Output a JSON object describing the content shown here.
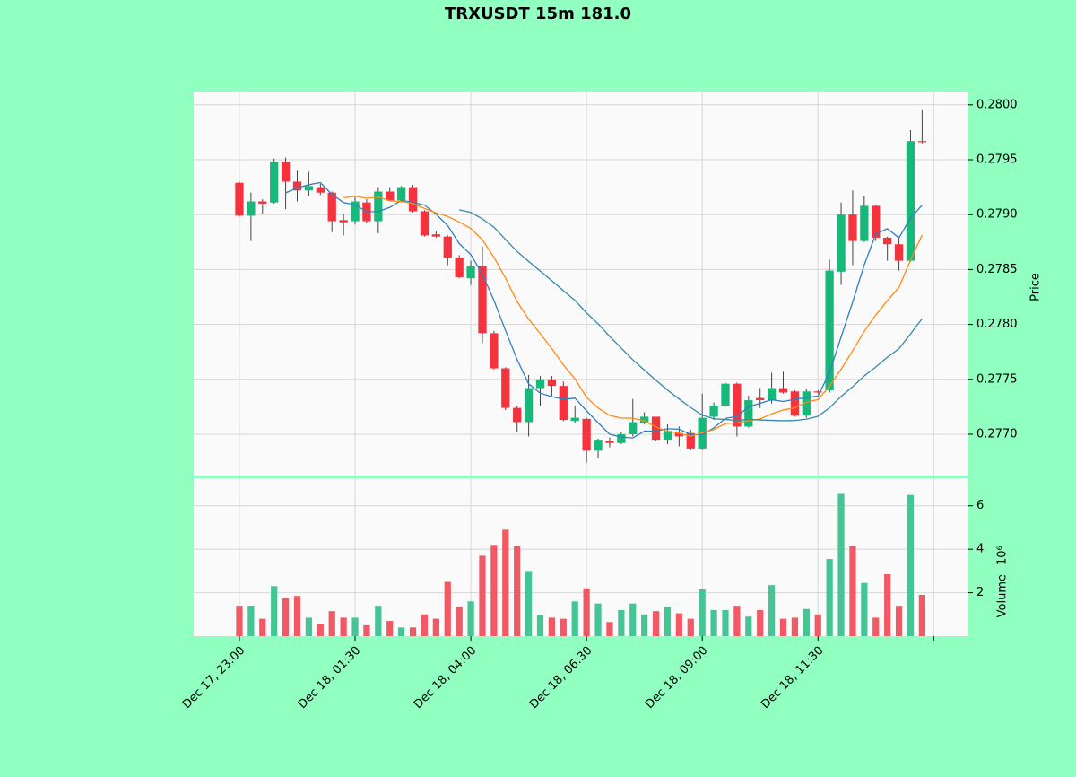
{
  "chart_data": {
    "type": "candlestick",
    "title": "TRXUSDT 15m 181.0",
    "ylabel": "Price",
    "volume_label": "Volume",
    "volume_scale_label": "10⁶",
    "up_color": "#16b97a",
    "down_color": "#f5333f",
    "volume_up_color": "#45c596",
    "volume_down_color": "#f25964",
    "wick_color": "#444444",
    "grid": true,
    "open": [
      0.27929,
      0.27899,
      0.27912,
      0.27911,
      0.27948,
      0.2793,
      0.27922,
      0.27925,
      0.2792,
      0.27895,
      0.27894,
      0.27911,
      0.27894,
      0.27921,
      0.27913,
      0.27925,
      0.27903,
      0.27882,
      0.2788,
      0.27861,
      0.27842,
      0.27853,
      0.27792,
      0.2776,
      0.27724,
      0.27711,
      0.27742,
      0.2775,
      0.27744,
      0.27712,
      0.27714,
      0.27685,
      0.27694,
      0.27692,
      0.277,
      0.2771,
      0.27716,
      0.27695,
      0.27701,
      0.27701,
      0.27687,
      0.27716,
      0.27726,
      0.27746,
      0.27707,
      0.27733,
      0.27731,
      0.27742,
      0.27739,
      0.27717,
      0.27739,
      0.2774,
      0.27848,
      0.279,
      0.27876,
      0.27908,
      0.27879,
      0.27873,
      0.27858,
      0.27967
    ],
    "high": [
      0.2793,
      0.2792,
      0.27914,
      0.27951,
      0.27952,
      0.2794,
      0.27939,
      0.27928,
      0.27921,
      0.27901,
      0.27916,
      0.27914,
      0.27925,
      0.27925,
      0.27926,
      0.27927,
      0.27904,
      0.27885,
      0.27881,
      0.27863,
      0.27858,
      0.27871,
      0.27794,
      0.27761,
      0.27726,
      0.27754,
      0.27753,
      0.27753,
      0.27748,
      0.27726,
      0.27715,
      0.27696,
      0.27697,
      0.27702,
      0.27732,
      0.2772,
      0.27716,
      0.27709,
      0.27707,
      0.27704,
      0.27737,
      0.27729,
      0.27747,
      0.27747,
      0.27735,
      0.27742,
      0.27756,
      0.27757,
      0.2774,
      0.27741,
      0.2774,
      0.27859,
      0.27911,
      0.27922,
      0.27917,
      0.27909,
      0.2788,
      0.2788,
      0.27977,
      0.27995
    ],
    "low": [
      0.27898,
      0.27876,
      0.27901,
      0.2791,
      0.27905,
      0.27912,
      0.27917,
      0.27918,
      0.27884,
      0.27881,
      0.27891,
      0.27892,
      0.27883,
      0.27912,
      0.27911,
      0.27902,
      0.2788,
      0.27879,
      0.27854,
      0.27842,
      0.27836,
      0.27783,
      0.27759,
      0.27722,
      0.27702,
      0.27698,
      0.27726,
      0.27735,
      0.27712,
      0.2771,
      0.27674,
      0.27678,
      0.27688,
      0.27691,
      0.27698,
      0.27709,
      0.27694,
      0.27691,
      0.27689,
      0.27686,
      0.27686,
      0.27713,
      0.27725,
      0.27698,
      0.27706,
      0.27724,
      0.27728,
      0.27737,
      0.27716,
      0.27715,
      0.27737,
      0.27738,
      0.27836,
      0.27854,
      0.27875,
      0.27876,
      0.27858,
      0.27849,
      0.27857,
      0.27965
    ],
    "close": [
      0.27899,
      0.27912,
      0.2791,
      0.27948,
      0.2793,
      0.27922,
      0.27926,
      0.2792,
      0.27894,
      0.27893,
      0.27912,
      0.27894,
      0.27921,
      0.27913,
      0.27925,
      0.27903,
      0.27881,
      0.2788,
      0.27861,
      0.27843,
      0.27853,
      0.27792,
      0.2776,
      0.27724,
      0.27711,
      0.27742,
      0.2775,
      0.27744,
      0.27713,
      0.27715,
      0.27685,
      0.27695,
      0.27692,
      0.277,
      0.27711,
      0.27716,
      0.27695,
      0.27703,
      0.27698,
      0.27687,
      0.27715,
      0.27726,
      0.27746,
      0.27707,
      0.27731,
      0.27731,
      0.27742,
      0.27738,
      0.27717,
      0.27739,
      0.27738,
      0.27849,
      0.279,
      0.27876,
      0.27908,
      0.27879,
      0.27873,
      0.27858,
      0.27967,
      0.27966
    ],
    "volume": [
      1.4,
      1.4,
      0.8,
      2.3,
      1.75,
      1.85,
      0.85,
      0.55,
      1.15,
      0.85,
      0.85,
      0.5,
      1.4,
      0.7,
      0.4,
      0.4,
      1.0,
      0.8,
      2.5,
      1.35,
      1.6,
      3.7,
      4.2,
      4.9,
      4.15,
      3.0,
      0.95,
      0.85,
      0.8,
      1.6,
      2.2,
      1.5,
      0.65,
      1.2,
      1.5,
      1.0,
      1.15,
      1.35,
      1.05,
      0.8,
      2.15,
      1.2,
      1.2,
      1.4,
      0.9,
      1.2,
      2.35,
      0.8,
      0.85,
      1.25,
      1.0,
      3.55,
      6.55,
      4.15,
      2.45,
      0.85,
      2.85,
      1.4,
      6.5,
      1.9
    ],
    "moving_averages": [
      {
        "color": "#2f7fbf",
        "values": [
          null,
          null,
          null,
          null,
          0.279198,
          0.279244,
          0.279272,
          0.279292,
          0.279184,
          0.27911,
          0.27909,
          0.279026,
          0.279028,
          0.279066,
          0.27913,
          0.279112,
          0.279086,
          0.279004,
          0.2789,
          0.278736,
          0.278636,
          0.278458,
          0.278218,
          0.277944,
          0.27768,
          0.277458,
          0.277374,
          0.277342,
          0.27732,
          0.277328,
          0.277214,
          0.277104,
          0.277,
          0.276974,
          0.276966,
          0.277028,
          0.277028,
          0.27705,
          0.277046,
          0.276998,
          0.276996,
          0.277058,
          0.277144,
          0.277162,
          0.27725,
          0.277282,
          0.277314,
          0.277298,
          0.277318,
          0.277334,
          0.277348,
          0.277562,
          0.277886,
          0.278204,
          0.278542,
          0.278824,
          0.278872,
          0.278788,
          0.27897,
          0.279086
        ]
      },
      {
        "color": "#ff8a12",
        "values": [
          null,
          null,
          null,
          null,
          null,
          null,
          null,
          null,
          null,
          0.279154,
          0.279167,
          0.279149,
          0.27916,
          0.279125,
          0.27912,
          0.279101,
          0.279056,
          0.279016,
          0.278983,
          0.278933,
          0.278874,
          0.278772,
          0.278611,
          0.278422,
          0.278208,
          0.278047,
          0.277916,
          0.27778,
          0.277632,
          0.277504,
          0.277336,
          0.277239,
          0.277171,
          0.277147,
          0.277147,
          0.277121,
          0.277066,
          0.277025,
          0.27701,
          0.276982,
          0.277012,
          0.277043,
          0.277097,
          0.277104,
          0.277124,
          0.277139,
          0.277186,
          0.277221,
          0.27724,
          0.277292,
          0.277315,
          0.277438,
          0.277592,
          0.277761,
          0.277938,
          0.278086,
          0.278217,
          0.278337,
          0.278587,
          0.278814
        ]
      },
      {
        "color": "#3588aa",
        "values": [
          null,
          null,
          null,
          null,
          null,
          null,
          null,
          null,
          null,
          null,
          null,
          null,
          null,
          null,
          null,
          null,
          null,
          null,
          null,
          0.2790435,
          0.2790205,
          0.2789605,
          0.2788855,
          0.2787735,
          0.278664,
          0.278574,
          0.278486,
          0.278398,
          0.2783075,
          0.2782185,
          0.278105,
          0.2780055,
          0.277891,
          0.2777845,
          0.2776775,
          0.277584,
          0.277491,
          0.2774025,
          0.277321,
          0.277243,
          0.277174,
          0.277141,
          0.277134,
          0.2771255,
          0.2771355,
          0.27713,
          0.277126,
          0.277123,
          0.277125,
          0.277137,
          0.2771635,
          0.2772405,
          0.2773445,
          0.2774325,
          0.277531,
          0.2776125,
          0.2777015,
          0.277779,
          0.2779135,
          0.278053
        ]
      }
    ],
    "xlim": [
      -3.95,
      63.0
    ],
    "xticks": [
      {
        "value": 0,
        "label": "Dec 17, 23:00"
      },
      {
        "value": 10,
        "label": "Dec 18, 01:30"
      },
      {
        "value": 20,
        "label": "Dec 18, 04:00"
      },
      {
        "value": 30,
        "label": "Dec 18, 06:30"
      },
      {
        "value": 40,
        "label": "Dec 18, 09:00"
      },
      {
        "value": 50,
        "label": "Dec 18, 11:30"
      },
      {
        "value": 60,
        "label": null
      }
    ],
    "ylim": [
      0.276624,
      0.280121
    ],
    "yticks": [
      {
        "value": 0.277,
        "label": "0.2770"
      },
      {
        "value": 0.2775,
        "label": "0.2775"
      },
      {
        "value": 0.278,
        "label": "0.2780"
      },
      {
        "value": 0.2785,
        "label": "0.2785"
      },
      {
        "value": 0.279,
        "label": "0.2790"
      },
      {
        "value": 0.2795,
        "label": "0.2795"
      },
      {
        "value": 0.28,
        "label": "0.2800"
      }
    ],
    "volume_ylim": [
      0,
      7.27
    ],
    "volume_yticks": [
      2,
      4,
      6
    ]
  }
}
